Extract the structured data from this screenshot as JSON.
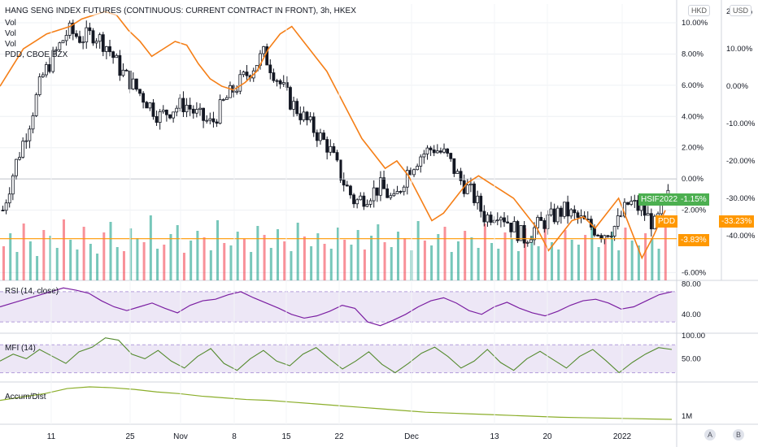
{
  "header": {
    "title": "HANG SENG INDEX FUTURES (CONTINUOUS: CURRENT CONTRACT IN FRONT), 3h, HKEX",
    "legend": [
      "Vol",
      "Vol",
      "Vol",
      "PDD, CBOE BZX"
    ]
  },
  "scales": {
    "left_currency": "HKD",
    "right_currency": "USD"
  },
  "panes": {
    "rsi": {
      "title": "RSI (14, close)"
    },
    "mfi": {
      "title": "MFI (14)"
    },
    "ad": {
      "title": "Accum/Dist"
    }
  },
  "tags": {
    "hsif_symbol": "HSIF2022",
    "hsif_value": "-1.15%",
    "pdd_symbol": "PDD",
    "pdd_value": "-33.23%",
    "hline_value": "-3.83%"
  },
  "buttons": {
    "auto": "A",
    "log": "B"
  },
  "colors": {
    "up": "#089981",
    "down": "#f23645",
    "pdd_line": "#f57f17",
    "rsi_line": "#7b1fa2",
    "rsi_band": "#ede7f6",
    "mfi_line": "#558b2f",
    "mfi_band": "#ede7f6",
    "ad_line": "#8bae2a",
    "tag_green": "#4caf50",
    "tag_orange": "#ff9800"
  },
  "chart_data": [
    {
      "type": "candlestick",
      "title": "HANG SENG INDEX FUTURES (CONTINUOUS: CURRENT CONTRACT IN FRONT), 3h, HKEX",
      "y_unit": "% change",
      "yticks": [
        "10.00%",
        "8.00%",
        "6.00%",
        "4.00%",
        "2.00%",
        "0.00%",
        "-2.00%",
        "-6.00%"
      ],
      "y_tick_values": [
        10,
        8,
        6,
        4,
        2,
        0,
        -2,
        -6
      ],
      "ylim": [
        -6.5,
        11.2
      ],
      "x_tick_labels": [
        "11",
        "25",
        "Nov",
        "8",
        "15",
        "22",
        "Dec",
        "13",
        "20",
        "2022"
      ],
      "close_anchors": [
        -2.0,
        1.0,
        3.5,
        6.5,
        8.0,
        9.5,
        9.0,
        9.3,
        8.5,
        7.0,
        6.0,
        5.0,
        4.0,
        4.5,
        4.8,
        4.0,
        3.5,
        5.0,
        6.0,
        7.0,
        8.0,
        6.5,
        5.0,
        4.0,
        3.0,
        2.0,
        0.0,
        -1.5,
        -1.0,
        -0.5,
        -1.5,
        0.5,
        1.5,
        2.0,
        1.5,
        0.0,
        -1.0,
        -2.5,
        -2.0,
        -3.0,
        -3.8,
        -3.0,
        -2.5,
        -2.0,
        -2.5,
        -3.0,
        -3.5,
        -3.0,
        -1.5,
        -2.0,
        -3.0,
        -1.15
      ],
      "last": -1.15,
      "horizontal_line": -3.83
    },
    {
      "type": "line",
      "name": "PDD, CBOE BZX",
      "y_unit": "% change",
      "yticks": [
        "20.00%",
        "10.00%",
        "0.00%",
        "-10.00%",
        "-20.00%",
        "-30.00%",
        "-40.00%"
      ],
      "y_tick_values": [
        20,
        10,
        0,
        -10,
        -20,
        -30,
        -40
      ],
      "ylim": [
        -52,
        22
      ],
      "values": [
        0,
        5,
        10,
        12,
        14,
        15,
        16,
        18,
        19,
        20,
        19,
        15,
        12,
        8,
        10,
        12,
        11,
        6,
        2,
        0,
        -1,
        1,
        4,
        10,
        14,
        16,
        12,
        8,
        4,
        -2,
        -8,
        -14,
        -18,
        -22,
        -20,
        -24,
        -30,
        -36,
        -34,
        -30,
        -26,
        -24,
        -26,
        -28,
        -30,
        -34,
        -38,
        -44,
        -40,
        -36,
        -35,
        -38,
        -34,
        -30,
        -38,
        -46,
        -40,
        -33.23
      ],
      "last": -33.23
    },
    {
      "type": "bar",
      "name": "Vol",
      "values": [
        42,
        58,
        35,
        70,
        48,
        30,
        62,
        55,
        40,
        75,
        50,
        38,
        66,
        45,
        33,
        59,
        72,
        41,
        36,
        64,
        52,
        47,
        80,
        39,
        44,
        57,
        68,
        34,
        49,
        61,
        53,
        37,
        74,
        46,
        43,
        60,
        51,
        35,
        67,
        56,
        40,
        63,
        48,
        36,
        71,
        54,
        42,
        58,
        45,
        39,
        65,
        50,
        44,
        62,
        38,
        55,
        69,
        47,
        41,
        60,
        52,
        37,
        73,
        49,
        43,
        57,
        66,
        35,
        48,
        61,
        53,
        40,
        70,
        46,
        39,
        59,
        51,
        36,
        64,
        55,
        42,
        68,
        47,
        38,
        62,
        50,
        44,
        56,
        71,
        41,
        54,
        60,
        37,
        65,
        49,
        43,
        58,
        52,
        39,
        67
      ]
    },
    {
      "type": "line",
      "name": "RSI (14, close)",
      "yticks": [
        "80.00",
        "40.00"
      ],
      "y_tick_values": [
        80,
        40
      ],
      "ylim": [
        15,
        85
      ],
      "band": [
        30,
        70
      ],
      "values": [
        50,
        55,
        60,
        65,
        70,
        75,
        72,
        68,
        58,
        50,
        45,
        50,
        55,
        48,
        42,
        52,
        58,
        60,
        66,
        70,
        62,
        55,
        48,
        40,
        35,
        38,
        44,
        52,
        48,
        30,
        25,
        32,
        40,
        50,
        58,
        62,
        55,
        45,
        40,
        50,
        56,
        48,
        42,
        38,
        44,
        52,
        58,
        60,
        55,
        47,
        50,
        58,
        66,
        70
      ]
    },
    {
      "type": "line",
      "name": "MFI (14)",
      "yticks": [
        "100.00",
        "50.00"
      ],
      "y_tick_values": [
        100,
        50
      ],
      "ylim": [
        0,
        105
      ],
      "band": [
        20,
        80
      ],
      "values": [
        45,
        60,
        50,
        70,
        55,
        40,
        65,
        75,
        95,
        90,
        60,
        50,
        68,
        45,
        30,
        55,
        72,
        40,
        25,
        50,
        68,
        45,
        35,
        60,
        74,
        50,
        28,
        45,
        65,
        38,
        20,
        40,
        62,
        75,
        55,
        30,
        45,
        70,
        42,
        25,
        50,
        66,
        48,
        30,
        55,
        70,
        46,
        20,
        42,
        60,
        74,
        70
      ]
    },
    {
      "type": "area",
      "name": "Accum/Dist",
      "yticks": [
        "1M"
      ],
      "values": [
        12,
        16,
        20,
        26,
        28,
        27,
        25,
        22,
        20,
        17,
        15,
        13,
        12,
        10,
        8,
        6,
        4,
        2,
        0,
        -2,
        -3,
        -4,
        -5,
        -6,
        -7,
        -8,
        -8.5,
        -9,
        -9.5,
        -10,
        -10.5
      ]
    }
  ]
}
